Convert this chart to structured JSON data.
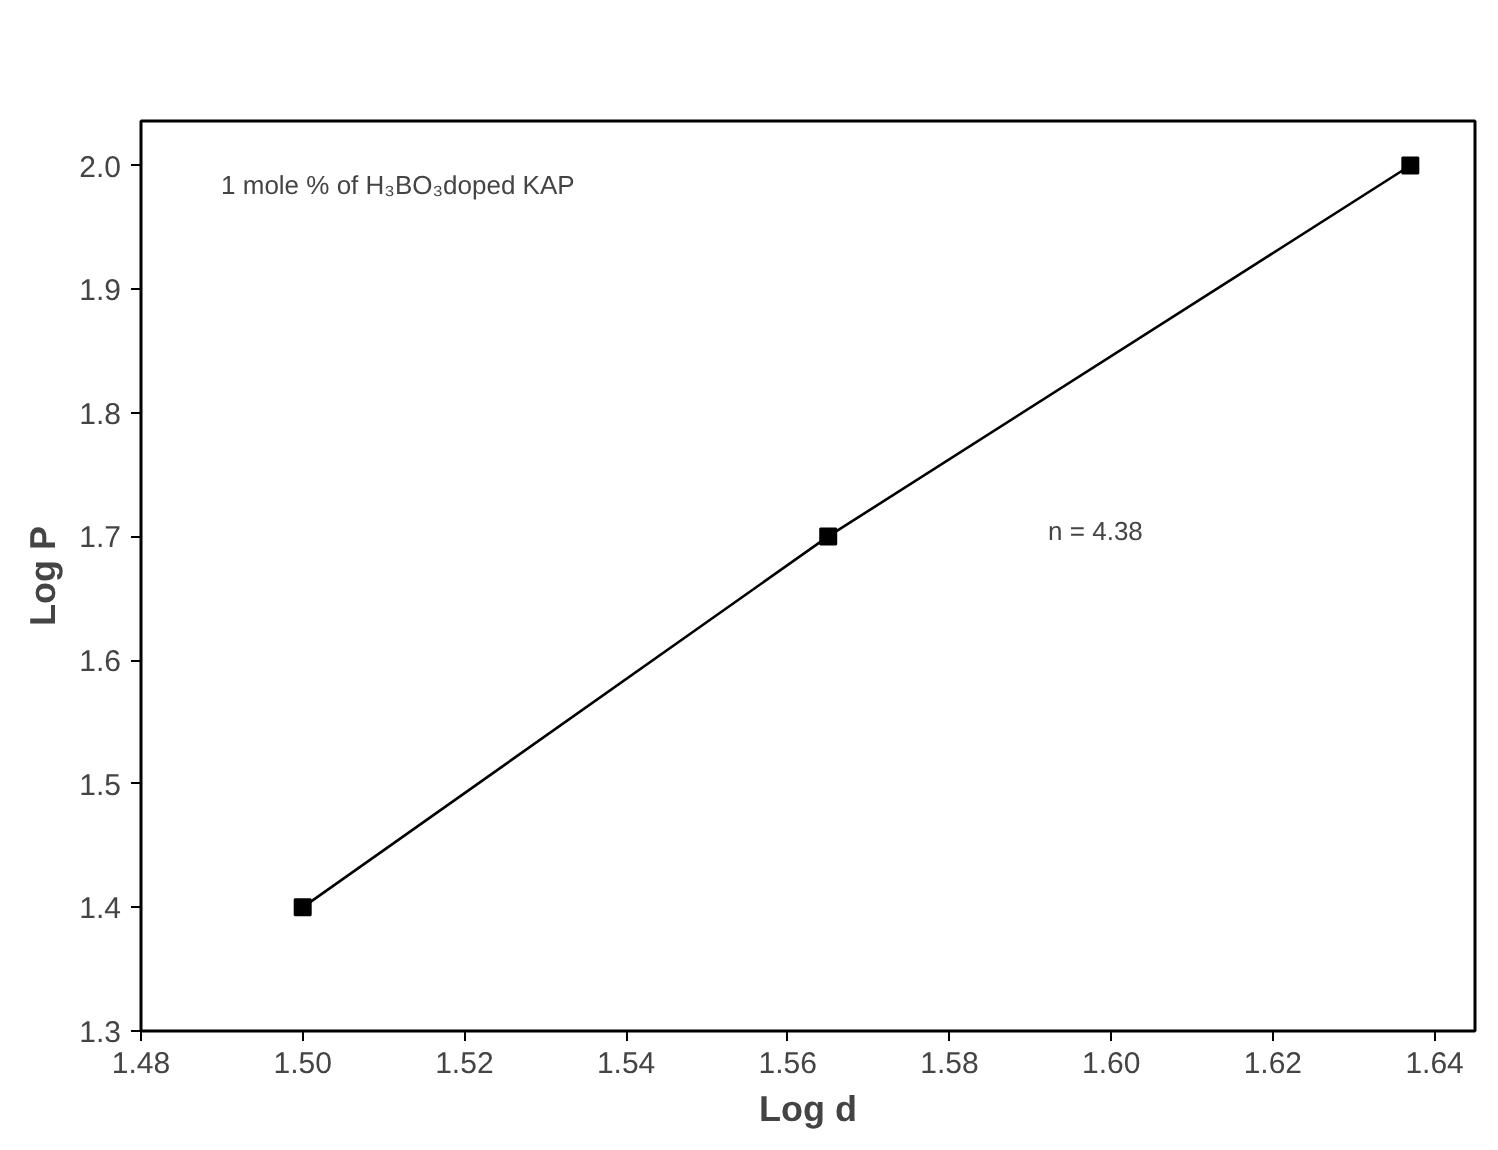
{
  "chart_data": {
    "type": "line",
    "xlabel": "Log d",
    "ylabel": "Log P",
    "x": [
      1.5,
      1.565,
      1.637
    ],
    "series": [
      {
        "color": "#000000",
        "values": [
          1.4,
          1.7,
          2.0
        ]
      }
    ],
    "marker": "square",
    "line_style": "solid",
    "grid": false,
    "xlim": [
      1.48,
      1.645
    ],
    "xticks": [
      1.48,
      {
        "value": 1.5,
        "label": "1.50"
      },
      1.52,
      1.54,
      1.56,
      1.58,
      {
        "value": 1.6,
        "label": "1.60"
      },
      1.62,
      1.64
    ],
    "ylim": [
      1.3,
      2.036
    ],
    "yticks": [
      1.3,
      1.4,
      1.5,
      1.6,
      1.7,
      1.8,
      1.9,
      {
        "value": 2.0,
        "label": "2.0"
      }
    ],
    "annotations": [
      "1 mole % of H₃BO₃doped KAP",
      "n = 4.38"
    ]
  }
}
